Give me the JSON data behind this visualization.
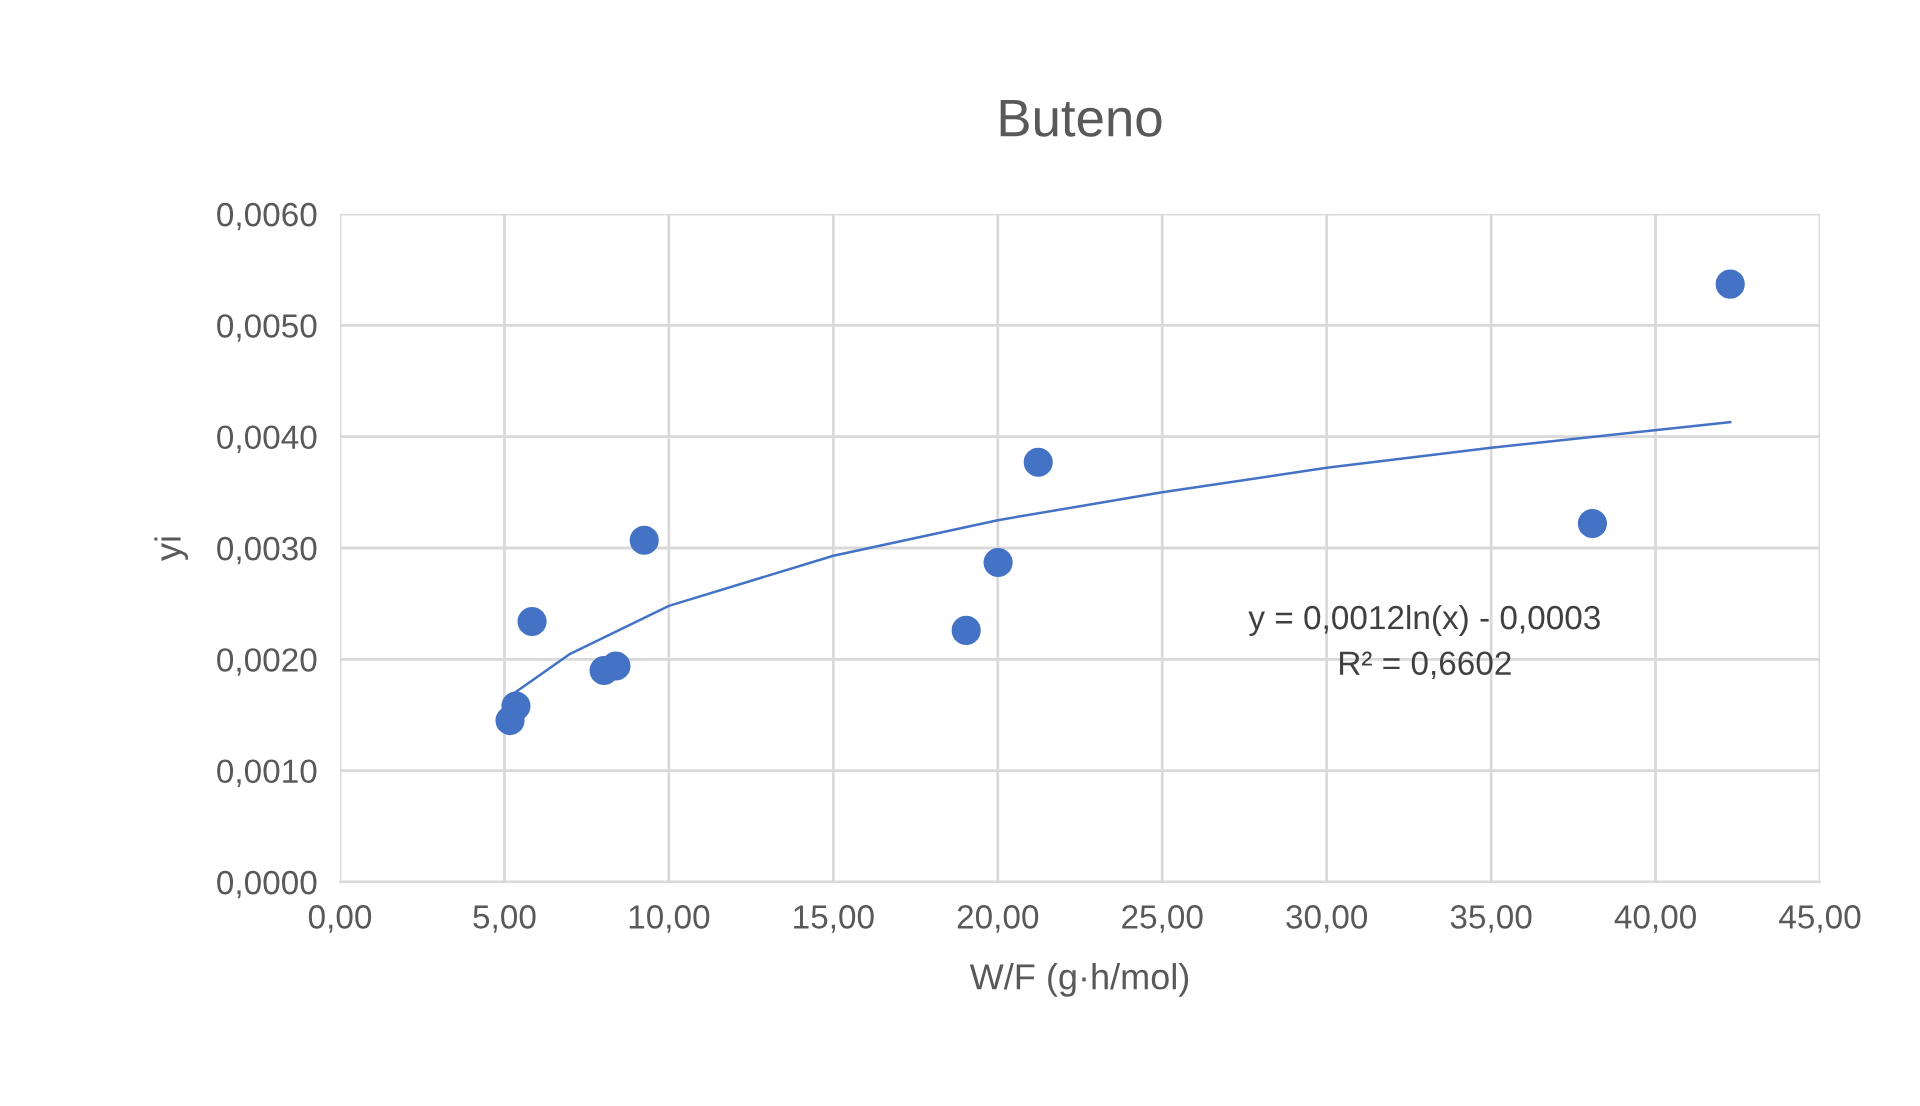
{
  "chart_data": {
    "type": "scatter",
    "title": "Buteno",
    "xlabel": "W/F (g·h/mol)",
    "ylabel": "yi",
    "series": [
      {
        "color": "#4472c4",
        "marker": "circle",
        "x": [
          5.17,
          5.35,
          5.84,
          8.03,
          8.39,
          9.25,
          19.04,
          20.01,
          21.23,
          38.08,
          42.27
        ],
        "values": [
          0.00145,
          0.00158,
          0.00234,
          0.0019,
          0.00194,
          0.00307,
          0.00226,
          0.00287,
          0.00377,
          0.00322,
          0.00537
        ]
      },
      {
        "type": "line",
        "color": "#4472c4",
        "marker": "none",
        "line_style": "solid",
        "x": [
          5.17,
          7,
          10,
          15,
          20,
          25,
          30,
          35,
          42.27
        ],
        "values": [
          0.00167,
          0.00205,
          0.00248,
          0.00293,
          0.00325,
          0.0035,
          0.00372,
          0.0039,
          0.00413
        ]
      }
    ],
    "xlim": [
      0,
      45
    ],
    "ylim": [
      0,
      0.006
    ],
    "xticks": [
      {
        "value": 0,
        "label": "0,00"
      },
      {
        "value": 5,
        "label": "5,00"
      },
      {
        "value": 10,
        "label": "10,00"
      },
      {
        "value": 15,
        "label": "15,00"
      },
      {
        "value": 20,
        "label": "20,00"
      },
      {
        "value": 25,
        "label": "25,00"
      },
      {
        "value": 30,
        "label": "30,00"
      },
      {
        "value": 35,
        "label": "35,00"
      },
      {
        "value": 40,
        "label": "40,00"
      },
      {
        "value": 45,
        "label": "45,00"
      }
    ],
    "yticks": [
      {
        "value": 0,
        "label": "0,0000"
      },
      {
        "value": 0.001,
        "label": "0,0010"
      },
      {
        "value": 0.002,
        "label": "0,0020"
      },
      {
        "value": 0.003,
        "label": "0,0030"
      },
      {
        "value": 0.004,
        "label": "0,0040"
      },
      {
        "value": 0.005,
        "label": "0,0050"
      },
      {
        "value": 0.006,
        "label": "0,0060"
      }
    ],
    "grid": true,
    "legend": false,
    "annotations": [
      "y = 0,0012ln(x) - 0,0003\nR² = 0,6602"
    ]
  }
}
